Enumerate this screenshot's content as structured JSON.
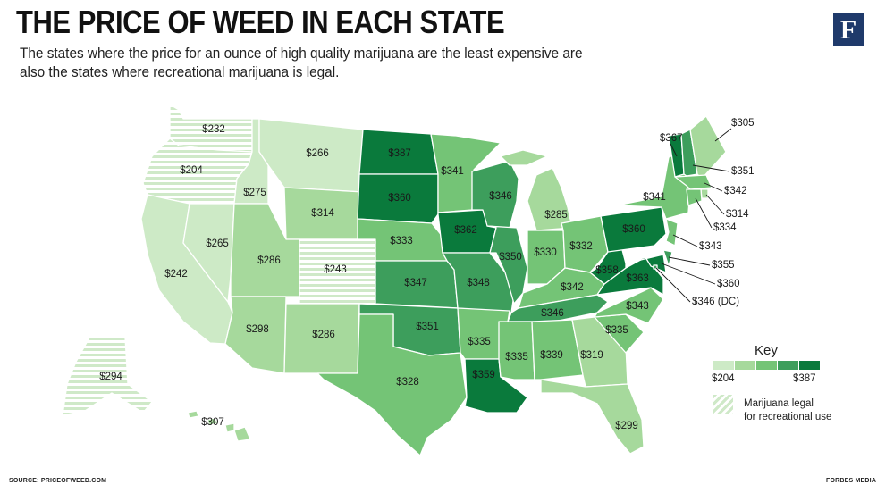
{
  "header": {
    "title": "THE PRICE OF WEED IN EACH STATE",
    "subtitle": "The states where the price for an ounce of high quality marijuana are the least expensive are also the states where recreational marijuana is legal.",
    "logo_letter": "F"
  },
  "colors": {
    "scale": [
      "#cdeac6",
      "#a6d99c",
      "#74c476",
      "#3d9e5c",
      "#0a7a3c"
    ],
    "legal_stripe": "#cfe9c8",
    "logo_bg": "#1f3a6b"
  },
  "legend": {
    "title": "Key",
    "min_label": "$204",
    "max_label": "$387",
    "legal_label_line1": "Marijuana legal",
    "legal_label_line2": "for recreational use"
  },
  "states": [
    {
      "code": "WA",
      "price": "$232",
      "value": 232,
      "legal": true
    },
    {
      "code": "OR",
      "price": "$204",
      "value": 204,
      "legal": true
    },
    {
      "code": "CA",
      "price": "$242",
      "value": 242,
      "legal": false
    },
    {
      "code": "NV",
      "price": "$265",
      "value": 265,
      "legal": false
    },
    {
      "code": "ID",
      "price": "$275",
      "value": 275,
      "legal": false
    },
    {
      "code": "MT",
      "price": "$266",
      "value": 266,
      "legal": false
    },
    {
      "code": "WY",
      "price": "$314",
      "value": 314,
      "legal": false
    },
    {
      "code": "UT",
      "price": "$286",
      "value": 286,
      "legal": false
    },
    {
      "code": "CO",
      "price": "$243",
      "value": 243,
      "legal": true
    },
    {
      "code": "AZ",
      "price": "$298",
      "value": 298,
      "legal": false
    },
    {
      "code": "NM",
      "price": "$286",
      "value": 286,
      "legal": false
    },
    {
      "code": "ND",
      "price": "$387",
      "value": 387,
      "legal": false
    },
    {
      "code": "SD",
      "price": "$360",
      "value": 360,
      "legal": false
    },
    {
      "code": "NE",
      "price": "$333",
      "value": 333,
      "legal": false
    },
    {
      "code": "KS",
      "price": "$347",
      "value": 347,
      "legal": false
    },
    {
      "code": "OK",
      "price": "$351",
      "value": 351,
      "legal": false
    },
    {
      "code": "TX",
      "price": "$328",
      "value": 328,
      "legal": false
    },
    {
      "code": "MN",
      "price": "$341",
      "value": 341,
      "legal": false
    },
    {
      "code": "IA",
      "price": "$362",
      "value": 362,
      "legal": false
    },
    {
      "code": "MO",
      "price": "$348",
      "value": 348,
      "legal": false
    },
    {
      "code": "AR",
      "price": "$335",
      "value": 335,
      "legal": false
    },
    {
      "code": "LA",
      "price": "$359",
      "value": 359,
      "legal": false
    },
    {
      "code": "WI",
      "price": "$346",
      "value": 346,
      "legal": false
    },
    {
      "code": "IL",
      "price": "$350",
      "value": 350,
      "legal": false
    },
    {
      "code": "MI",
      "price": "$285",
      "value": 285,
      "legal": false
    },
    {
      "code": "IN",
      "price": "$330",
      "value": 330,
      "legal": false
    },
    {
      "code": "OH",
      "price": "$332",
      "value": 332,
      "legal": false
    },
    {
      "code": "KY",
      "price": "$342",
      "value": 342,
      "legal": false
    },
    {
      "code": "TN",
      "price": "$346",
      "value": 346,
      "legal": false
    },
    {
      "code": "MS",
      "price": "$335",
      "value": 335,
      "legal": false
    },
    {
      "code": "AL",
      "price": "$339",
      "value": 339,
      "legal": false
    },
    {
      "code": "GA",
      "price": "$319",
      "value": 319,
      "legal": false
    },
    {
      "code": "FL",
      "price": "$299",
      "value": 299,
      "legal": false
    },
    {
      "code": "SC",
      "price": "$335",
      "value": 335,
      "legal": false
    },
    {
      "code": "NC",
      "price": "$343",
      "value": 343,
      "legal": false
    },
    {
      "code": "VA",
      "price": "$363",
      "value": 363,
      "legal": false
    },
    {
      "code": "WV",
      "price": "$358",
      "value": 358,
      "legal": false
    },
    {
      "code": "PA",
      "price": "$360",
      "value": 360,
      "legal": false
    },
    {
      "code": "NY",
      "price": "$341",
      "value": 341,
      "legal": false
    },
    {
      "code": "VT",
      "price": "$367",
      "value": 367,
      "legal": false
    },
    {
      "code": "NH",
      "price": "$351",
      "value": 351,
      "legal": false
    },
    {
      "code": "ME",
      "price": "$305",
      "value": 305,
      "legal": false
    },
    {
      "code": "MA",
      "price": "$342",
      "value": 342,
      "legal": false
    },
    {
      "code": "RI",
      "price": "$314",
      "value": 314,
      "legal": false
    },
    {
      "code": "CT",
      "price": "$334",
      "value": 334,
      "legal": false
    },
    {
      "code": "NJ",
      "price": "$343",
      "value": 343,
      "legal": false
    },
    {
      "code": "DE",
      "price": "$355",
      "value": 355,
      "legal": false
    },
    {
      "code": "MD",
      "price": "$360",
      "value": 360,
      "legal": false
    },
    {
      "code": "DC",
      "price": "$346 (DC)",
      "value": 346,
      "legal": false
    },
    {
      "code": "AK",
      "price": "$294",
      "value": 294,
      "legal": true
    },
    {
      "code": "HI",
      "price": "$307",
      "value": 307,
      "legal": false
    }
  ],
  "footer": {
    "source": "SOURCE: PRICEOFWEED.COM",
    "credit": "FORBES MEDIA"
  }
}
